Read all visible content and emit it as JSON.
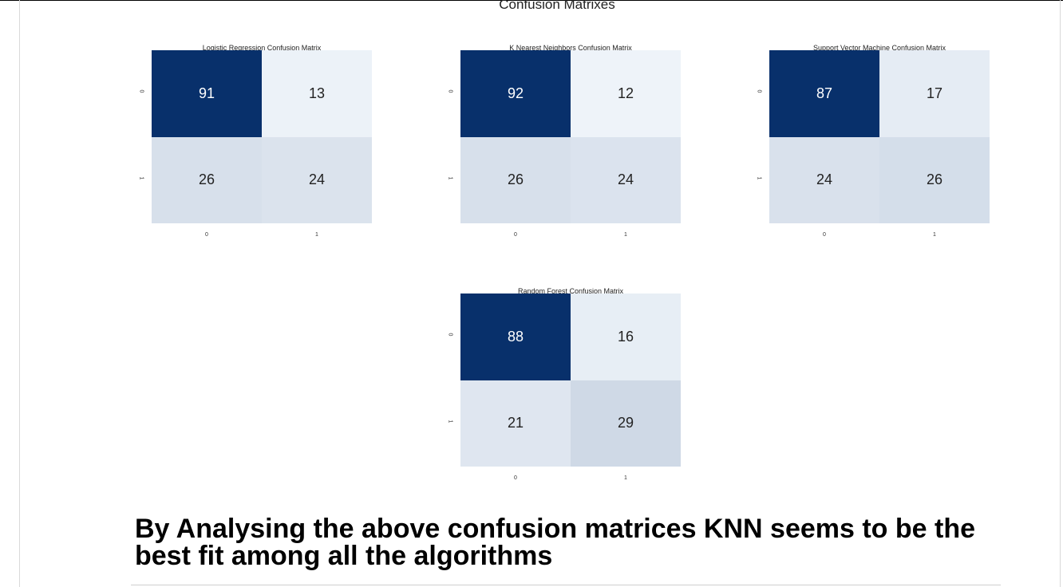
{
  "figure": {
    "suptitle": "Confusion Matrixes"
  },
  "chart_data": [
    {
      "type": "heatmap",
      "title": "Logistic Regression Confusion Matrix",
      "x_ticks": [
        "0",
        "1"
      ],
      "y_ticks": [
        "0",
        "1"
      ],
      "values": [
        [
          91,
          13
        ],
        [
          26,
          24
        ]
      ],
      "colormap": "Blues"
    },
    {
      "type": "heatmap",
      "title": "K Nearest Neighbors Confusion Matrix",
      "x_ticks": [
        "0",
        "1"
      ],
      "y_ticks": [
        "0",
        "1"
      ],
      "values": [
        [
          92,
          12
        ],
        [
          26,
          24
        ]
      ],
      "colormap": "Blues"
    },
    {
      "type": "heatmap",
      "title": "Support Vector Machine Confusion Matrix",
      "x_ticks": [
        "0",
        "1"
      ],
      "y_ticks": [
        "0",
        "1"
      ],
      "values": [
        [
          87,
          17
        ],
        [
          24,
          26
        ]
      ],
      "colormap": "Blues"
    },
    {
      "type": "heatmap",
      "title": "Random Forest Confusion Matrix",
      "x_ticks": [
        "0",
        "1"
      ],
      "y_ticks": [
        "0",
        "1"
      ],
      "values": [
        [
          88,
          16
        ],
        [
          21,
          29
        ]
      ],
      "colormap": "Blues"
    }
  ],
  "conclusion": "By Analysing the above confusion matrices KNN seems to be the best fit among all the algorithms",
  "colors": {
    "dark_cell": "#08306b",
    "light_cell": "#f7fbff"
  }
}
